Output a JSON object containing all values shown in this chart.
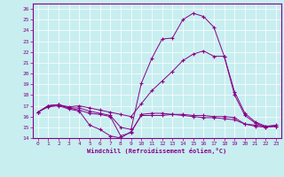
{
  "xlabel": "Windchill (Refroidissement éolien,°C)",
  "bg_color": "#c8eef0",
  "line_color": "#880088",
  "xlim": [
    -0.5,
    23.5
  ],
  "ylim": [
    14,
    26.5
  ],
  "yticks": [
    14,
    15,
    16,
    17,
    18,
    19,
    20,
    21,
    22,
    23,
    24,
    25,
    26
  ],
  "xticks": [
    0,
    1,
    2,
    3,
    4,
    5,
    6,
    7,
    8,
    9,
    10,
    11,
    12,
    13,
    14,
    15,
    16,
    17,
    18,
    19,
    20,
    21,
    22,
    23
  ],
  "series": [
    {
      "x": [
        0,
        1,
        2,
        3,
        4,
        5,
        6,
        7,
        8,
        9,
        10,
        11,
        12,
        13,
        14,
        15,
        16,
        17,
        18,
        19,
        20,
        21,
        22,
        23
      ],
      "y": [
        16.4,
        17.0,
        17.1,
        16.8,
        16.6,
        16.3,
        16.2,
        16.0,
        14.2,
        14.5,
        16.2,
        16.3,
        16.3,
        16.2,
        16.1,
        16.0,
        15.9,
        15.9,
        15.8,
        15.7,
        15.3,
        15.1,
        15.0,
        15.1
      ]
    },
    {
      "x": [
        0,
        1,
        2,
        3,
        4,
        5,
        6,
        7,
        8,
        9,
        10,
        11,
        12,
        13,
        14,
        15,
        16,
        17,
        18,
        19,
        20,
        21,
        22,
        23
      ],
      "y": [
        16.4,
        16.9,
        17.0,
        16.7,
        16.5,
        15.2,
        14.8,
        14.2,
        14.0,
        14.6,
        16.1,
        16.1,
        16.1,
        16.2,
        16.2,
        16.1,
        16.1,
        16.0,
        16.0,
        15.9,
        15.3,
        15.2,
        15.1,
        15.1
      ]
    },
    {
      "x": [
        0,
        1,
        2,
        3,
        4,
        5,
        6,
        7,
        8,
        9,
        10,
        11,
        12,
        13,
        14,
        15,
        16,
        17,
        18,
        19,
        20,
        21,
        22,
        23
      ],
      "y": [
        16.4,
        17.0,
        17.1,
        16.8,
        16.8,
        16.5,
        16.3,
        16.1,
        15.0,
        14.8,
        19.1,
        21.4,
        23.2,
        23.3,
        25.0,
        25.6,
        25.3,
        24.3,
        21.6,
        18.0,
        16.1,
        15.4,
        15.0,
        15.1
      ]
    },
    {
      "x": [
        0,
        1,
        2,
        3,
        4,
        5,
        6,
        7,
        8,
        9,
        10,
        11,
        12,
        13,
        14,
        15,
        16,
        17,
        18,
        19,
        20,
        21,
        22,
        23
      ],
      "y": [
        16.4,
        17.0,
        17.1,
        16.9,
        17.0,
        16.8,
        16.6,
        16.4,
        16.2,
        16.0,
        17.2,
        18.4,
        19.3,
        20.2,
        21.2,
        21.8,
        22.1,
        21.6,
        21.6,
        18.3,
        16.3,
        15.5,
        15.1,
        15.2
      ]
    }
  ]
}
